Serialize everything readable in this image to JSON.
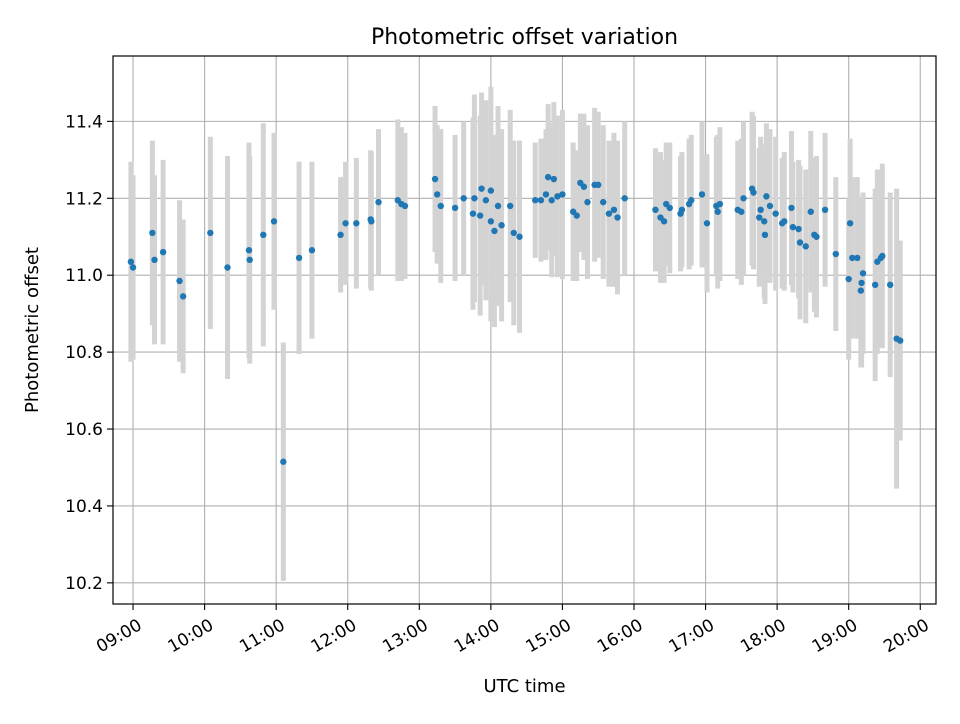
{
  "chart_data": {
    "type": "scatter",
    "title": "Photometric offset variation",
    "xlabel": "UTC time",
    "ylabel": "Photometric offset",
    "xlim": [
      8.72,
      20.22
    ],
    "ylim": [
      10.145,
      11.57
    ],
    "xticks": [
      9,
      10,
      11,
      12,
      13,
      14,
      15,
      16,
      17,
      18,
      19,
      20
    ],
    "xtick_labels": [
      "09:00",
      "10:00",
      "11:00",
      "12:00",
      "13:00",
      "14:00",
      "15:00",
      "16:00",
      "17:00",
      "18:00",
      "19:00",
      "20:00"
    ],
    "yticks": [
      10.2,
      10.4,
      10.6,
      10.8,
      11.0,
      11.2,
      11.4
    ],
    "ytick_labels": [
      "10.2",
      "10.4",
      "10.6",
      "10.8",
      "11.0",
      "11.2",
      "11.4"
    ],
    "grid": true,
    "colors": {
      "marker": "#1f77b4",
      "errorbar": "#d3d3d3",
      "grid": "#b0b0b0"
    },
    "x_format": "decimal hours UTC",
    "points": [
      [
        8.97,
        11.035,
        0.26
      ],
      [
        9.0,
        11.02,
        0.24
      ],
      [
        9.27,
        11.11,
        0.24
      ],
      [
        9.3,
        11.04,
        0.22
      ],
      [
        9.42,
        11.06,
        0.24
      ],
      [
        9.65,
        10.985,
        0.21
      ],
      [
        9.7,
        10.945,
        0.2
      ],
      [
        10.08,
        11.11,
        0.25
      ],
      [
        10.32,
        11.02,
        0.29
      ],
      [
        10.62,
        11.065,
        0.28
      ],
      [
        10.63,
        11.04,
        0.27
      ],
      [
        10.82,
        11.105,
        0.29
      ],
      [
        10.97,
        11.14,
        0.23
      ],
      [
        11.1,
        10.515,
        0.31
      ],
      [
        11.32,
        11.045,
        0.25
      ],
      [
        11.5,
        11.065,
        0.23
      ],
      [
        11.9,
        11.105,
        0.15
      ],
      [
        11.97,
        11.135,
        0.16
      ],
      [
        12.12,
        11.135,
        0.17
      ],
      [
        12.32,
        11.145,
        0.18
      ],
      [
        12.33,
        11.14,
        0.18
      ],
      [
        12.43,
        11.19,
        0.19
      ],
      [
        12.7,
        11.195,
        0.21
      ],
      [
        12.75,
        11.185,
        0.2
      ],
      [
        12.8,
        11.18,
        0.19
      ],
      [
        13.22,
        11.25,
        0.19
      ],
      [
        13.25,
        11.21,
        0.18
      ],
      [
        13.3,
        11.18,
        0.2
      ],
      [
        13.5,
        11.175,
        0.19
      ],
      [
        13.62,
        11.2,
        0.2
      ],
      [
        13.75,
        11.16,
        0.25
      ],
      [
        13.77,
        11.2,
        0.27
      ],
      [
        13.85,
        11.155,
        0.26
      ],
      [
        13.87,
        11.225,
        0.25
      ],
      [
        13.93,
        11.195,
        0.26
      ],
      [
        14.0,
        11.22,
        0.27
      ],
      [
        14.0,
        11.14,
        0.26
      ],
      [
        14.05,
        11.115,
        0.25
      ],
      [
        14.1,
        11.18,
        0.26
      ],
      [
        14.15,
        11.13,
        0.25
      ],
      [
        14.27,
        11.18,
        0.25
      ],
      [
        14.32,
        11.11,
        0.24
      ],
      [
        14.4,
        11.1,
        0.25
      ],
      [
        14.62,
        11.195,
        0.15
      ],
      [
        14.7,
        11.195,
        0.16
      ],
      [
        14.77,
        11.21,
        0.17
      ],
      [
        14.8,
        11.255,
        0.19
      ],
      [
        14.85,
        11.195,
        0.2
      ],
      [
        14.88,
        11.25,
        0.2
      ],
      [
        14.93,
        11.205,
        0.21
      ],
      [
        15.0,
        11.21,
        0.22
      ],
      [
        15.15,
        11.165,
        0.18
      ],
      [
        15.2,
        11.155,
        0.17
      ],
      [
        15.25,
        11.24,
        0.18
      ],
      [
        15.3,
        11.23,
        0.19
      ],
      [
        15.35,
        11.19,
        0.2
      ],
      [
        15.45,
        11.235,
        0.2
      ],
      [
        15.5,
        11.235,
        0.19
      ],
      [
        15.57,
        11.19,
        0.2
      ],
      [
        15.65,
        11.16,
        0.19
      ],
      [
        15.72,
        11.17,
        0.2
      ],
      [
        15.77,
        11.15,
        0.2
      ],
      [
        15.87,
        11.2,
        0.2
      ],
      [
        16.3,
        11.17,
        0.16
      ],
      [
        16.37,
        11.15,
        0.17
      ],
      [
        16.42,
        11.14,
        0.16
      ],
      [
        16.45,
        11.185,
        0.16
      ],
      [
        16.5,
        11.175,
        0.17
      ],
      [
        16.65,
        11.16,
        0.15
      ],
      [
        16.67,
        11.17,
        0.15
      ],
      [
        16.77,
        11.185,
        0.17
      ],
      [
        16.8,
        11.195,
        0.17
      ],
      [
        16.95,
        11.21,
        0.19
      ],
      [
        17.02,
        11.135,
        0.18
      ],
      [
        17.15,
        11.18,
        0.18
      ],
      [
        17.17,
        11.165,
        0.2
      ],
      [
        17.2,
        11.185,
        0.2
      ],
      [
        17.45,
        11.17,
        0.18
      ],
      [
        17.5,
        11.165,
        0.19
      ],
      [
        17.53,
        11.2,
        0.2
      ],
      [
        17.65,
        11.225,
        0.2
      ],
      [
        17.67,
        11.215,
        0.2
      ],
      [
        17.75,
        11.15,
        0.18
      ],
      [
        17.77,
        11.17,
        0.19
      ],
      [
        17.82,
        11.14,
        0.2
      ],
      [
        17.83,
        11.105,
        0.18
      ],
      [
        17.85,
        11.205,
        0.19
      ],
      [
        17.9,
        11.18,
        0.2
      ],
      [
        17.98,
        11.16,
        0.2
      ],
      [
        18.07,
        11.135,
        0.17
      ],
      [
        18.1,
        11.14,
        0.18
      ],
      [
        18.2,
        11.175,
        0.2
      ],
      [
        18.22,
        11.125,
        0.17
      ],
      [
        18.3,
        11.12,
        0.18
      ],
      [
        18.32,
        11.085,
        0.2
      ],
      [
        18.4,
        11.075,
        0.2
      ],
      [
        18.47,
        11.165,
        0.21
      ],
      [
        18.52,
        11.105,
        0.2
      ],
      [
        18.55,
        11.1,
        0.21
      ],
      [
        18.67,
        11.17,
        0.2
      ],
      [
        18.82,
        11.055,
        0.2
      ],
      [
        19.0,
        10.99,
        0.21
      ],
      [
        19.02,
        11.135,
        0.22
      ],
      [
        19.05,
        11.045,
        0.21
      ],
      [
        19.12,
        11.045,
        0.21
      ],
      [
        19.17,
        10.96,
        0.2
      ],
      [
        19.2,
        11.005,
        0.21
      ],
      [
        19.18,
        10.98,
        0.22
      ],
      [
        19.37,
        10.975,
        0.25
      ],
      [
        19.4,
        11.035,
        0.24
      ],
      [
        19.45,
        11.045,
        0.23
      ],
      [
        19.47,
        11.05,
        0.24
      ],
      [
        19.58,
        10.975,
        0.24
      ],
      [
        19.67,
        10.835,
        0.39
      ],
      [
        19.72,
        10.83,
        0.26
      ]
    ]
  }
}
